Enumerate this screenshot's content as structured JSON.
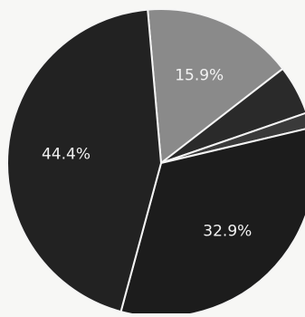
{
  "chart_data": {
    "type": "pie",
    "title": "",
    "slices": [
      {
        "label": "",
        "value": 15.9,
        "display": "15.9%",
        "color": "#8a8a8a"
      },
      {
        "label": "",
        "value": 5.2,
        "display": "",
        "color": "#2a2a2a"
      },
      {
        "label": "",
        "value": 1.6,
        "display": "",
        "color": "#3a3a3a"
      },
      {
        "label": "",
        "value": 32.9,
        "display": "32.9%",
        "color": "#1c1c1c"
      },
      {
        "label": "",
        "value": 44.4,
        "display": "44.4%",
        "color": "#222222"
      }
    ],
    "start_angle_deg": -5,
    "direction": "clockwise",
    "legend": "none",
    "background": "#f7f7f5",
    "label_color": "#f2f2f2",
    "separator_color": "#f5f5f5"
  }
}
